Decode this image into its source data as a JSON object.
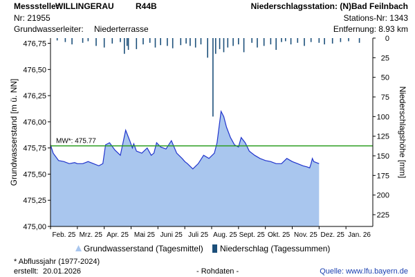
{
  "header": {
    "station_label": "Messstelle:",
    "station_name": "WILLINGERAU",
    "station_code": "R44B",
    "precip_station": "Niederschlagsstation: (N)Bad Feilnbach",
    "nr": "Nr: 21955",
    "precip_station_nr": "Stations-Nr: 1343",
    "aquifer_label": "Grundwasserleiter:",
    "aquifer_value": "Niederterrasse",
    "distance": "Entfernung: 8.93 km"
  },
  "footer": {
    "note": "* Abflussjahr (1977-2024)",
    "created_label": "erstellt:",
    "created_date": "20.01.2026",
    "raw": "- Rohdaten -",
    "source": "Quelle: www.lfu.bayern.de"
  },
  "legend": {
    "groundwater": "Grundwasserstand (Tagesmittel)",
    "precip": "Niederschlag (Tagessummen)"
  },
  "colors": {
    "area_fill": "#a9c6ee",
    "line": "#1f33cc",
    "mw_line": "#2a9d1f",
    "precip_bar": "#1c4f7a",
    "axis": "#000000",
    "grid": "#c8c8c8"
  },
  "chart_data": {
    "type": "area",
    "ylabel": "Grundwasserstand [m ü. NN]",
    "y2label": "Niederschlagshöhe [mm]",
    "ylim": [
      475.0,
      476.8
    ],
    "y_ticks": [
      "475,00",
      "475,25",
      "475,50",
      "475,75",
      "476,00",
      "476,25",
      "476,50",
      "476,75"
    ],
    "y2lim": [
      0,
      240
    ],
    "y2_ticks": [
      "0",
      "25",
      "50",
      "75",
      "100",
      "125",
      "150",
      "175",
      "200",
      "225"
    ],
    "x_range_months": [
      0,
      12
    ],
    "x_labels": [
      "Feb. 25",
      "Mrz. 25",
      "Apr. 25",
      "Mai 25",
      "Juni 25",
      "Juli 25",
      "Aug. 25",
      "Sept. 25",
      "Okt. 25",
      "Nov. 25",
      "Dez. 25",
      "Jan. 26"
    ],
    "mw_label": "MW*: 475.77",
    "mw_value": 475.77,
    "groundwater": {
      "name": "Grundwasserstand (Tagesmittel)",
      "x": [
        0.0,
        0.1,
        0.3,
        0.5,
        0.7,
        0.9,
        1.0,
        1.2,
        1.4,
        1.6,
        1.8,
        1.95,
        2.05,
        2.2,
        2.4,
        2.6,
        2.8,
        2.95,
        3.05,
        3.1,
        3.2,
        3.4,
        3.6,
        3.75,
        3.85,
        3.95,
        4.1,
        4.3,
        4.5,
        4.7,
        4.9,
        5.0,
        5.1,
        5.3,
        5.5,
        5.7,
        5.9,
        6.1,
        6.2,
        6.35,
        6.45,
        6.55,
        6.7,
        6.85,
        7.0,
        7.1,
        7.25,
        7.4,
        7.6,
        7.8,
        8.0,
        8.2,
        8.4,
        8.6,
        8.8,
        9.0,
        9.2,
        9.4,
        9.55,
        9.65,
        9.7,
        9.75,
        9.8,
        9.9,
        10.0
      ],
      "y": [
        475.78,
        475.7,
        475.63,
        475.62,
        475.6,
        475.61,
        475.6,
        475.6,
        475.62,
        475.6,
        475.58,
        475.6,
        475.78,
        475.8,
        475.73,
        475.68,
        475.92,
        475.82,
        475.75,
        475.79,
        475.72,
        475.7,
        475.75,
        475.68,
        475.7,
        475.8,
        475.76,
        475.74,
        475.82,
        475.7,
        475.65,
        475.62,
        475.6,
        475.55,
        475.6,
        475.68,
        475.65,
        475.7,
        475.8,
        476.1,
        476.05,
        475.95,
        475.85,
        475.78,
        475.76,
        475.85,
        475.8,
        475.72,
        475.68,
        475.65,
        475.63,
        475.62,
        475.6,
        475.6,
        475.65,
        475.62,
        475.6,
        475.58,
        475.57,
        475.56,
        475.6,
        475.65,
        475.62,
        475.61,
        475.6
      ]
    },
    "precipitation": {
      "name": "Niederschlag (Tagessummen)",
      "x": [
        0.25,
        0.55,
        0.8,
        1.2,
        1.4,
        1.7,
        2.0,
        2.3,
        2.6,
        2.75,
        2.85,
        2.9,
        3.2,
        3.45,
        3.7,
        3.9,
        4.1,
        4.35,
        4.55,
        4.85,
        5.05,
        5.2,
        5.4,
        5.6,
        5.85,
        6.05,
        6.15,
        6.3,
        6.45,
        6.6,
        6.8,
        7.0,
        7.2,
        7.5,
        7.7,
        7.95,
        8.2,
        8.4,
        8.6,
        8.75,
        8.95,
        9.2,
        9.45,
        9.7,
        10.0,
        10.2,
        10.5,
        10.8,
        11.1,
        11.5
      ],
      "y": [
        3,
        5,
        8,
        6,
        4,
        10,
        12,
        7,
        5,
        20,
        10,
        15,
        14,
        8,
        6,
        12,
        9,
        10,
        13,
        9,
        7,
        10,
        12,
        8,
        25,
        100,
        20,
        14,
        18,
        12,
        10,
        8,
        18,
        6,
        12,
        10,
        8,
        15,
        5,
        4,
        8,
        6,
        10,
        5,
        6,
        8,
        7,
        5,
        4,
        6
      ]
    }
  }
}
